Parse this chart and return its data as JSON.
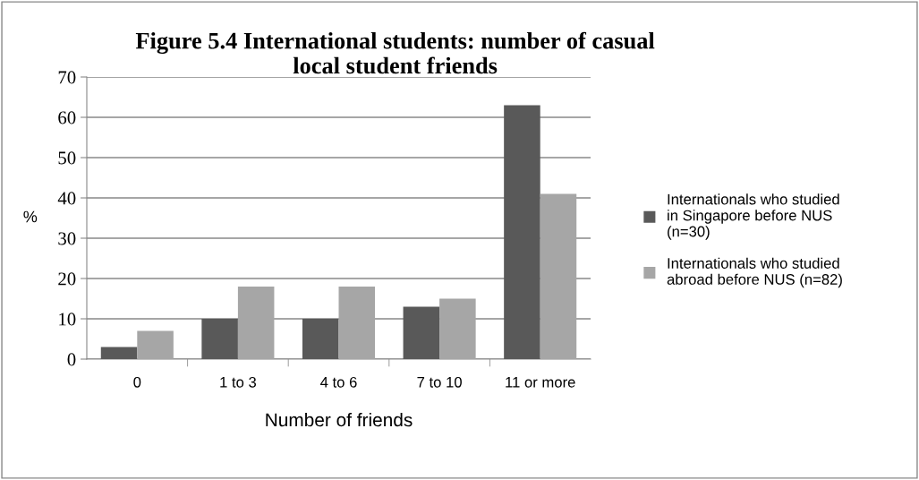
{
  "chart_data": {
    "type": "bar",
    "title": "Figure 5.4 International students: number of casual local student friends",
    "xlabel": "Number of friends",
    "ylabel": "%",
    "categories": [
      "0",
      "1 to 3",
      "4 to 6",
      "7 to 10",
      "11 or more"
    ],
    "series": [
      {
        "name": "Internationals who studied in Singapore before NUS (n=30)",
        "color": "#595959",
        "values": [
          3,
          10,
          10,
          13,
          63
        ]
      },
      {
        "name": "Internationals who studied abroad before NUS (n=82)",
        "color": "#a6a6a6",
        "values": [
          7,
          18,
          18,
          15,
          41
        ]
      }
    ],
    "ylim": [
      0,
      70
    ],
    "yticks": [
      0,
      10,
      20,
      30,
      40,
      50,
      60,
      70
    ],
    "grid": "y",
    "legend": "right"
  }
}
